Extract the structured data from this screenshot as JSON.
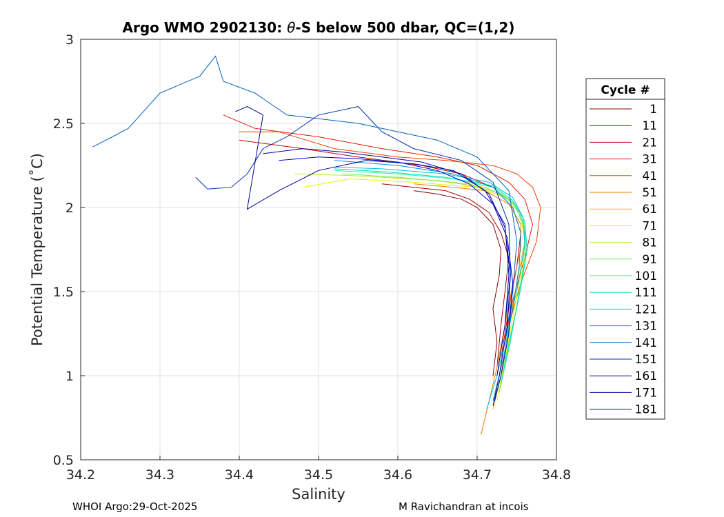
{
  "chart_data": {
    "type": "line",
    "title_prefix": "Argo WMO 2902130: ",
    "title_theta": "θ",
    "title_suffix": "-S below 500 dbar,  QC=(1,2)",
    "xlabel": "Salinity",
    "ylabel": "Potential Temperature (˚C)",
    "xlim": [
      34.2,
      34.8
    ],
    "ylim": [
      0.5,
      3.0
    ],
    "grid": true,
    "xticks": [
      "34.2",
      "34.3",
      "34.4",
      "34.5",
      "34.6",
      "34.7",
      "34.8"
    ],
    "yticks": [
      "0.5",
      "1",
      "1.5",
      "2",
      "2.5",
      "3"
    ],
    "legend": {
      "title": "Cycle #",
      "placement": "outside-right",
      "entries": [
        {
          "label": "1",
          "color": "#800000"
        },
        {
          "label": "11",
          "color": "#a00000"
        },
        {
          "label": "21",
          "color": "#c80000"
        },
        {
          "label": "31",
          "color": "#e01a00"
        },
        {
          "label": "41",
          "color": "#f04000"
        },
        {
          "label": "51",
          "color": "#f07800"
        },
        {
          "label": "61",
          "color": "#f0b000"
        },
        {
          "label": "71",
          "color": "#f0f000"
        },
        {
          "label": "81",
          "color": "#b0f030"
        },
        {
          "label": "91",
          "color": "#70f060"
        },
        {
          "label": "101",
          "color": "#30f090"
        },
        {
          "label": "111",
          "color": "#00e0c0"
        },
        {
          "label": "121",
          "color": "#00c0e0"
        },
        {
          "label": "131",
          "color": "#0090d0"
        },
        {
          "label": "141",
          "color": "#0060c0"
        },
        {
          "label": "151",
          "color": "#0030b0"
        },
        {
          "label": "161",
          "color": "#000090"
        },
        {
          "label": "171",
          "color": "#0000a0"
        },
        {
          "label": "181",
          "color": "#0000d0"
        }
      ]
    },
    "series": [
      {
        "name": "cycle 1",
        "color": "#800000",
        "points": [
          [
            34.72,
            1.0
          ],
          [
            34.725,
            1.2
          ],
          [
            34.72,
            1.4
          ],
          [
            34.728,
            1.6
          ],
          [
            34.73,
            1.75
          ],
          [
            34.72,
            1.9
          ],
          [
            34.7,
            2.0
          ],
          [
            34.68,
            2.05
          ],
          [
            34.65,
            2.08
          ],
          [
            34.62,
            2.1
          ]
        ]
      },
      {
        "name": "cycle 11",
        "color": "#a00000",
        "points": [
          [
            34.725,
            1.05
          ],
          [
            34.73,
            1.3
          ],
          [
            34.735,
            1.5
          ],
          [
            34.74,
            1.7
          ],
          [
            34.73,
            1.85
          ],
          [
            34.715,
            1.97
          ],
          [
            34.69,
            2.05
          ],
          [
            34.66,
            2.1
          ],
          [
            34.62,
            2.12
          ],
          [
            34.58,
            2.14
          ]
        ]
      },
      {
        "name": "cycle 21",
        "color": "#c80000",
        "points": [
          [
            34.73,
            1.1
          ],
          [
            34.74,
            1.4
          ],
          [
            34.75,
            1.65
          ],
          [
            34.755,
            1.85
          ],
          [
            34.745,
            2.0
          ],
          [
            34.72,
            2.12
          ],
          [
            34.68,
            2.2
          ],
          [
            34.63,
            2.25
          ],
          [
            34.55,
            2.3
          ],
          [
            34.48,
            2.35
          ],
          [
            34.4,
            2.4
          ]
        ]
      },
      {
        "name": "cycle 31",
        "color": "#e01a00",
        "points": [
          [
            34.735,
            1.2
          ],
          [
            34.745,
            1.45
          ],
          [
            34.76,
            1.7
          ],
          [
            34.77,
            1.9
          ],
          [
            34.76,
            2.05
          ],
          [
            34.74,
            2.15
          ],
          [
            34.7,
            2.25
          ],
          [
            34.65,
            2.3
          ],
          [
            34.58,
            2.35
          ],
          [
            34.5,
            2.42
          ],
          [
            34.42,
            2.47
          ],
          [
            34.38,
            2.55
          ]
        ]
      },
      {
        "name": "cycle 41",
        "color": "#f04000",
        "points": [
          [
            34.74,
            1.3
          ],
          [
            34.755,
            1.55
          ],
          [
            34.775,
            1.8
          ],
          [
            34.78,
            2.0
          ],
          [
            34.77,
            2.12
          ],
          [
            34.75,
            2.2
          ],
          [
            34.72,
            2.25
          ],
          [
            34.66,
            2.28
          ],
          [
            34.6,
            2.3
          ],
          [
            34.52,
            2.35
          ],
          [
            34.45,
            2.45
          ],
          [
            34.4,
            2.45
          ]
        ]
      },
      {
        "name": "cycle 51",
        "color": "#f07800",
        "points": [
          [
            34.705,
            0.65
          ],
          [
            34.715,
            0.85
          ],
          [
            34.725,
            1.05
          ],
          [
            34.735,
            1.3
          ],
          [
            34.745,
            1.55
          ],
          [
            34.755,
            1.75
          ],
          [
            34.755,
            1.9
          ],
          [
            34.74,
            2.02
          ],
          [
            34.71,
            2.1
          ],
          [
            34.67,
            2.12
          ],
          [
            34.62,
            2.14
          ]
        ]
      },
      {
        "name": "cycle 61",
        "color": "#f0b000",
        "points": [
          [
            34.72,
            0.8
          ],
          [
            34.73,
            1.0
          ],
          [
            34.74,
            1.3
          ],
          [
            34.75,
            1.55
          ],
          [
            34.76,
            1.8
          ],
          [
            34.755,
            1.95
          ],
          [
            34.74,
            2.05
          ],
          [
            34.71,
            2.12
          ],
          [
            34.65,
            2.16
          ],
          [
            34.58,
            2.18
          ]
        ]
      },
      {
        "name": "cycle 71",
        "color": "#f0f000",
        "points": [
          [
            34.725,
            0.85
          ],
          [
            34.735,
            1.1
          ],
          [
            34.745,
            1.35
          ],
          [
            34.755,
            1.6
          ],
          [
            34.76,
            1.8
          ],
          [
            34.755,
            1.95
          ],
          [
            34.74,
            2.05
          ],
          [
            34.7,
            2.12
          ],
          [
            34.62,
            2.15
          ],
          [
            34.54,
            2.17
          ],
          [
            34.48,
            2.12
          ]
        ]
      },
      {
        "name": "cycle 81",
        "color": "#b0f030",
        "points": [
          [
            34.725,
            0.9
          ],
          [
            34.738,
            1.15
          ],
          [
            34.75,
            1.4
          ],
          [
            34.758,
            1.65
          ],
          [
            34.76,
            1.85
          ],
          [
            34.75,
            2.0
          ],
          [
            34.73,
            2.08
          ],
          [
            34.69,
            2.14
          ],
          [
            34.62,
            2.17
          ],
          [
            34.54,
            2.19
          ],
          [
            34.47,
            2.2
          ]
        ]
      },
      {
        "name": "cycle 91",
        "color": "#70f060",
        "points": [
          [
            34.728,
            0.9
          ],
          [
            34.74,
            1.2
          ],
          [
            34.752,
            1.45
          ],
          [
            34.76,
            1.7
          ],
          [
            34.76,
            1.88
          ],
          [
            34.748,
            2.02
          ],
          [
            34.72,
            2.1
          ],
          [
            34.67,
            2.15
          ],
          [
            34.6,
            2.18
          ],
          [
            34.53,
            2.2
          ]
        ]
      },
      {
        "name": "cycle 101",
        "color": "#30f090",
        "points": [
          [
            34.73,
            0.95
          ],
          [
            34.742,
            1.2
          ],
          [
            34.753,
            1.5
          ],
          [
            34.762,
            1.72
          ],
          [
            34.76,
            1.9
          ],
          [
            34.745,
            2.03
          ],
          [
            34.72,
            2.12
          ],
          [
            34.67,
            2.17
          ],
          [
            34.6,
            2.2
          ],
          [
            34.52,
            2.22
          ]
        ]
      },
      {
        "name": "cycle 111",
        "color": "#00e0c0",
        "points": [
          [
            34.73,
            0.95
          ],
          [
            34.743,
            1.25
          ],
          [
            34.755,
            1.52
          ],
          [
            34.763,
            1.75
          ],
          [
            34.76,
            1.92
          ],
          [
            34.745,
            2.04
          ],
          [
            34.72,
            2.13
          ],
          [
            34.66,
            2.18
          ],
          [
            34.59,
            2.21
          ],
          [
            34.52,
            2.23
          ]
        ]
      },
      {
        "name": "cycle 121",
        "color": "#00c0e0",
        "points": [
          [
            34.712,
            0.8
          ],
          [
            34.725,
            1.0
          ],
          [
            34.74,
            1.3
          ],
          [
            34.752,
            1.55
          ],
          [
            34.76,
            1.78
          ],
          [
            34.758,
            1.94
          ],
          [
            34.745,
            2.06
          ],
          [
            34.715,
            2.15
          ],
          [
            34.66,
            2.2
          ],
          [
            34.58,
            2.23
          ],
          [
            34.52,
            2.24
          ]
        ]
      },
      {
        "name": "cycle 131",
        "color": "#0090d0",
        "points": [
          [
            34.72,
            0.85
          ],
          [
            34.733,
            1.1
          ],
          [
            34.745,
            1.4
          ],
          [
            34.753,
            1.65
          ],
          [
            34.755,
            1.85
          ],
          [
            34.745,
            2.0
          ],
          [
            34.72,
            2.12
          ],
          [
            34.67,
            2.2
          ],
          [
            34.6,
            2.25
          ],
          [
            34.52,
            2.28
          ]
        ]
      },
      {
        "name": "cycle 141",
        "color": "#0060c0",
        "points": [
          [
            34.215,
            2.36
          ],
          [
            34.24,
            2.42
          ],
          [
            34.26,
            2.47
          ],
          [
            34.3,
            2.68
          ],
          [
            34.35,
            2.78
          ],
          [
            34.37,
            2.9
          ],
          [
            34.38,
            2.75
          ],
          [
            34.42,
            2.68
          ],
          [
            34.46,
            2.55
          ],
          [
            34.55,
            2.5
          ],
          [
            34.65,
            2.4
          ],
          [
            34.7,
            2.3
          ],
          [
            34.74,
            2.1
          ],
          [
            34.75,
            1.8
          ],
          [
            34.745,
            1.5
          ],
          [
            34.735,
            1.2
          ]
        ]
      },
      {
        "name": "cycle 151",
        "color": "#0030b0",
        "points": [
          [
            34.345,
            2.18
          ],
          [
            34.36,
            2.11
          ],
          [
            34.39,
            2.12
          ],
          [
            34.41,
            2.2
          ],
          [
            34.43,
            2.35
          ],
          [
            34.46,
            2.42
          ],
          [
            34.5,
            2.55
          ],
          [
            34.55,
            2.6
          ],
          [
            34.58,
            2.45
          ],
          [
            34.62,
            2.35
          ],
          [
            34.68,
            2.28
          ],
          [
            34.72,
            2.15
          ],
          [
            34.74,
            1.9
          ],
          [
            34.742,
            1.6
          ],
          [
            34.735,
            1.3
          ]
        ]
      },
      {
        "name": "cycle 161",
        "color": "#000090",
        "points": [
          [
            34.395,
            2.57
          ],
          [
            34.41,
            2.6
          ],
          [
            34.43,
            2.55
          ],
          [
            34.41,
            1.99
          ],
          [
            34.45,
            2.1
          ],
          [
            34.5,
            2.22
          ],
          [
            34.56,
            2.28
          ],
          [
            34.62,
            2.26
          ],
          [
            34.67,
            2.22
          ],
          [
            34.71,
            2.1
          ],
          [
            34.735,
            1.9
          ],
          [
            34.74,
            1.6
          ],
          [
            34.735,
            1.3
          ],
          [
            34.725,
            1.0
          ]
        ]
      },
      {
        "name": "cycle 171",
        "color": "#0000a0",
        "points": [
          [
            34.43,
            2.32
          ],
          [
            34.48,
            2.35
          ],
          [
            34.53,
            2.33
          ],
          [
            34.58,
            2.3
          ],
          [
            34.63,
            2.27
          ],
          [
            34.68,
            2.2
          ],
          [
            34.715,
            2.08
          ],
          [
            34.735,
            1.88
          ],
          [
            34.742,
            1.6
          ],
          [
            34.738,
            1.3
          ],
          [
            34.728,
            1.0
          ],
          [
            34.72,
            0.82
          ]
        ]
      },
      {
        "name": "cycle 181",
        "color": "#0000d0",
        "points": [
          [
            34.45,
            2.28
          ],
          [
            34.5,
            2.3
          ],
          [
            34.55,
            2.29
          ],
          [
            34.6,
            2.27
          ],
          [
            34.65,
            2.22
          ],
          [
            34.69,
            2.14
          ],
          [
            34.72,
            2.02
          ],
          [
            34.738,
            1.82
          ],
          [
            34.745,
            1.55
          ],
          [
            34.74,
            1.25
          ],
          [
            34.73,
            1.0
          ],
          [
            34.722,
            0.85
          ]
        ]
      }
    ]
  },
  "footer": {
    "left": "WHOI Argo:29-Oct-2025",
    "right": "M Ravichandran at incois"
  }
}
